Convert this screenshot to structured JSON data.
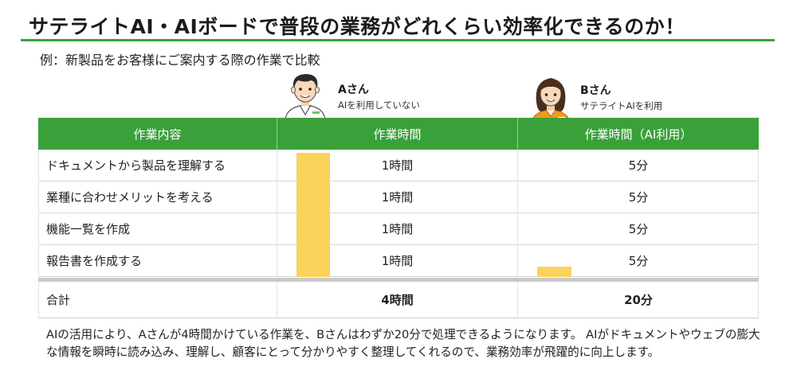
{
  "header": {
    "title": "サテライトAI・AIボードで普段の業務がどれくらい効率化できるのか！",
    "subtitle": "例：新製品をお客様にご案内する際の作業で比較"
  },
  "personas": {
    "a": {
      "name": "Aさん",
      "desc": "AIを利用していない"
    },
    "b": {
      "name": "Bさん",
      "desc": "サテライトAIを利用"
    }
  },
  "table": {
    "headers": [
      "作業内容",
      "作業時間",
      "作業時間（AI利用）"
    ],
    "rows": [
      {
        "task": "ドキュメントから製品を理解する",
        "a": "1時間",
        "b": "5分"
      },
      {
        "task": "業種に合わせメリットを考える",
        "a": "1時間",
        "b": "5分"
      },
      {
        "task": "機能一覧を作成",
        "a": "1時間",
        "b": "5分"
      },
      {
        "task": "報告書を作成する",
        "a": "1時間",
        "b": "5分"
      }
    ],
    "total": {
      "label": "合計",
      "a": "4時間",
      "b": "20分"
    }
  },
  "bars": {
    "color": "#fad35a",
    "a_minutes": 240,
    "b_minutes": 20
  },
  "colors": {
    "accent_green": "#3aa13a",
    "total_a": "#e3342f",
    "total_b": "#2a7ae2"
  },
  "footnote": "AIの活用により、Aさんが4時間かけている作業を、Bさんはわずか20分で処理できるようになります。 AIがドキュメントやウェブの膨大な情報を瞬時に読み込み、理解し、顧客にとって分かりやすく整理してくれるので、業務効率が飛躍的に向上します。"
}
